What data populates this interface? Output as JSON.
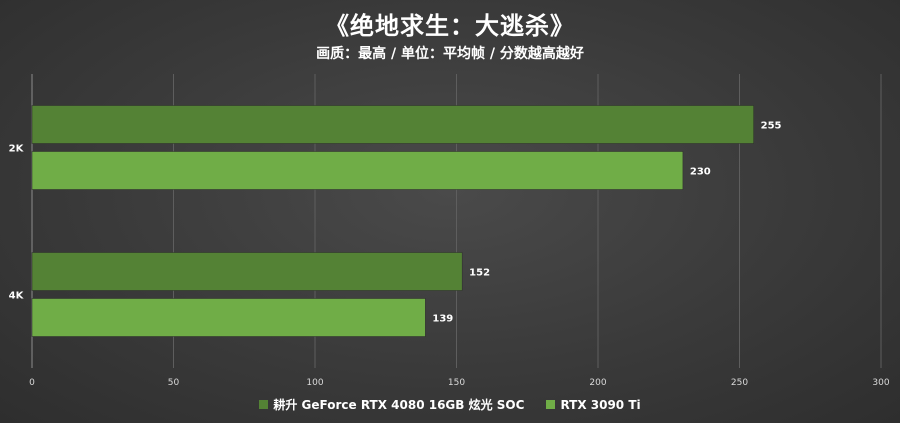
{
  "chart_data": {
    "type": "bar",
    "orientation": "horizontal",
    "title": "《绝地求生：大逃杀》",
    "subtitle": "画质：最高 / 单位：平均帧 / 分数越高越好",
    "categories": [
      "2K",
      "4K"
    ],
    "series": [
      {
        "name": "耕升 GeForce RTX 4080 16GB 炫光 SOC",
        "values": [
          255,
          152
        ],
        "color": "#548235"
      },
      {
        "name": "RTX 3090 Ti",
        "values": [
          230,
          139
        ],
        "color": "#70AD47"
      }
    ],
    "xlim": [
      0,
      300
    ],
    "xticks": [
      0,
      50,
      100,
      150,
      200,
      250,
      300
    ],
    "grid": true,
    "legend_position": "bottom-center",
    "data_labels": true
  }
}
